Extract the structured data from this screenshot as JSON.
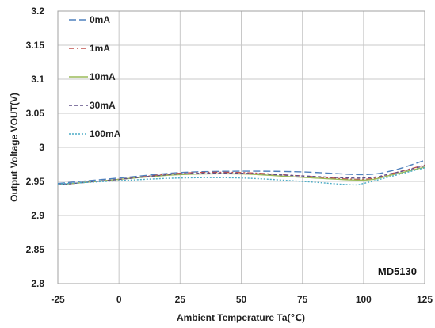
{
  "chart_data": {
    "type": "line",
    "xlabel": "Ambient Temperature Ta(℃)",
    "ylabel": "Output Voltage VOUT(V)",
    "xlim": [
      -25,
      125
    ],
    "ylim": [
      2.8,
      3.2
    ],
    "xticks": [
      -25,
      0,
      25,
      50,
      75,
      100,
      125
    ],
    "yticks": [
      2.8,
      2.85,
      2.9,
      2.95,
      3.0,
      3.05,
      3.1,
      3.15,
      3.2
    ],
    "xtick_labels": [
      "-25",
      "0",
      "25",
      "50",
      "75",
      "100",
      "125"
    ],
    "ytick_labels": [
      "2.8",
      "2.85",
      "2.9",
      "2.95",
      "3",
      "3.05",
      "3.1",
      "3.15",
      "3.2"
    ],
    "grid": true,
    "legend_position": "top-left",
    "annotation": "MD5130",
    "series": [
      {
        "name": "0mA",
        "color": "#4f81bd",
        "dash": "long-dash",
        "x": [
          -25,
          0,
          25,
          50,
          75,
          100,
          112,
          125
        ],
        "y": [
          2.947,
          2.955,
          2.963,
          2.965,
          2.964,
          2.96,
          2.966,
          2.981
        ]
      },
      {
        "name": "1mA",
        "color": "#c0504d",
        "dash": "dash-dot",
        "x": [
          -25,
          0,
          25,
          50,
          75,
          100,
          112,
          125
        ],
        "y": [
          2.945,
          2.953,
          2.962,
          2.963,
          2.958,
          2.953,
          2.962,
          2.974
        ]
      },
      {
        "name": "10mA",
        "color": "#9bbb59",
        "dash": "solid",
        "x": [
          -25,
          0,
          25,
          50,
          75,
          100,
          112,
          125
        ],
        "y": [
          2.945,
          2.953,
          2.96,
          2.961,
          2.956,
          2.952,
          2.96,
          2.971
        ]
      },
      {
        "name": "30mA",
        "color": "#5f4f86",
        "dash": "short-dash",
        "x": [
          -25,
          0,
          25,
          50,
          75,
          100,
          112,
          125
        ],
        "y": [
          2.945,
          2.953,
          2.961,
          2.962,
          2.958,
          2.955,
          2.962,
          2.973
        ]
      },
      {
        "name": "100mA",
        "color": "#4bacc6",
        "dash": "dot",
        "x": [
          -25,
          0,
          25,
          50,
          75,
          95,
          100,
          112,
          125
        ],
        "y": [
          2.946,
          2.951,
          2.955,
          2.955,
          2.95,
          2.945,
          2.947,
          2.958,
          2.97
        ]
      }
    ]
  }
}
